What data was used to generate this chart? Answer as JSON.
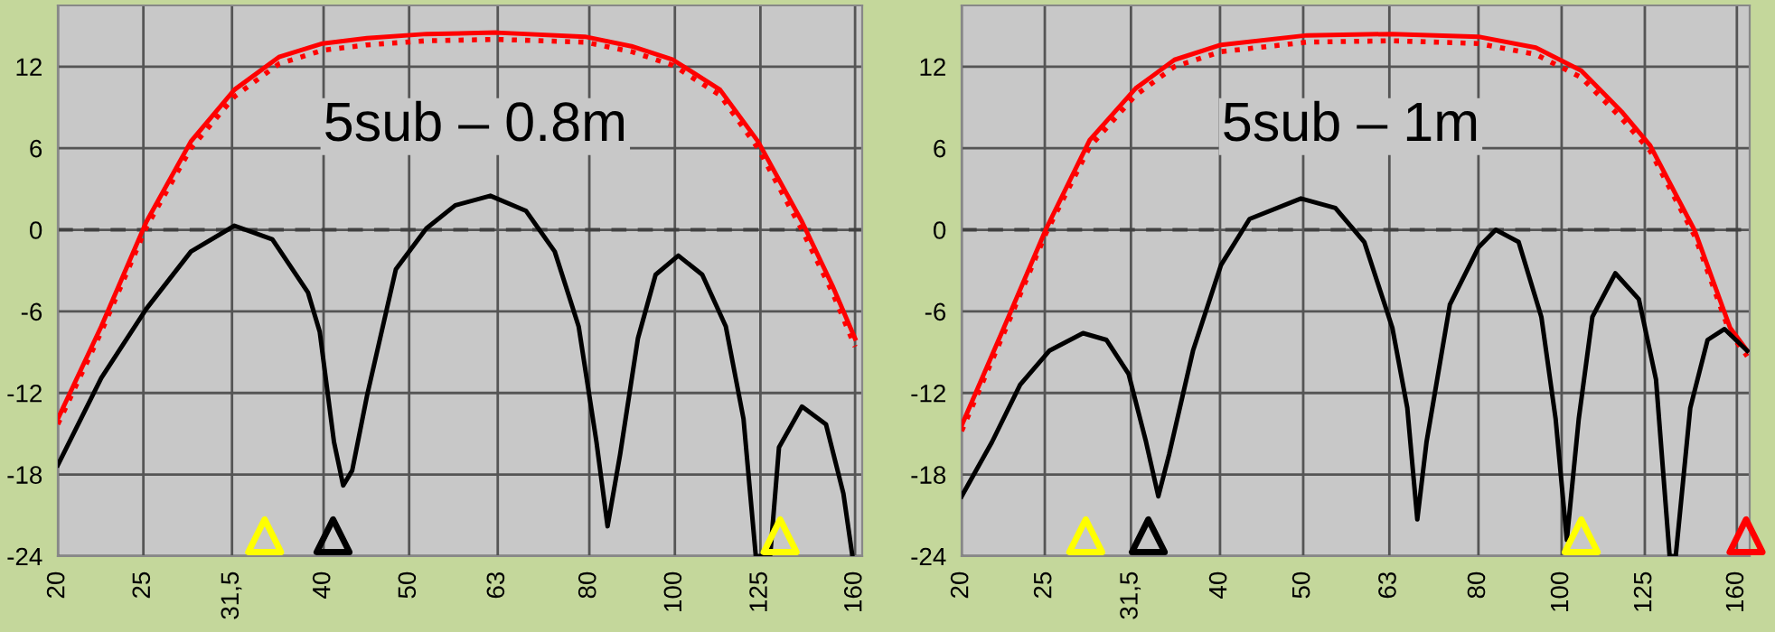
{
  "chart_data": [
    {
      "type": "line",
      "title": "5sub – 0.8m",
      "xlim": [
        20,
        163
      ],
      "ylim": [
        -24,
        16.5
      ],
      "log": "x",
      "xticks": [
        20,
        25,
        {
          "value": 31.5,
          "label": "31,5"
        },
        40,
        50,
        63,
        80,
        100,
        125,
        160
      ],
      "yticks": [
        -24,
        -18,
        -12,
        -6,
        0,
        6,
        12
      ],
      "grid": true,
      "ref_lines": [
        {
          "axis": "y",
          "value": 0,
          "color": "#404040",
          "line_style": "dashed"
        }
      ],
      "series": [
        {
          "color": "#ff0000",
          "line_style": "solid",
          "x": [
            20,
            22.4,
            25.2,
            28.3,
            31.7,
            35.6,
            39.9,
            44.8,
            52.3,
            62.8,
            79.1,
            89.3,
            99.5,
            112.5,
            124.2,
            139.3,
            150.8,
            160
          ],
          "values": [
            -13.9,
            -7.1,
            0.6,
            6.5,
            10.3,
            12.7,
            13.7,
            14.1,
            14.4,
            14.5,
            14.2,
            13.5,
            12.5,
            10.3,
            6.5,
            0.6,
            -4.1,
            -8
          ]
        },
        {
          "color": "#ff0000",
          "line_style": "dotted",
          "x": [
            20,
            22.4,
            25.2,
            28.3,
            31.7,
            35.6,
            39.9,
            44.8,
            52.3,
            62.8,
            79.1,
            89.3,
            99.5,
            112.5,
            124.2,
            139.3,
            150.8,
            160
          ],
          "values": [
            -14.3,
            -7.5,
            0.2,
            6,
            9.8,
            12.2,
            13.2,
            13.6,
            13.9,
            14,
            13.8,
            13.1,
            12.1,
            9.9,
            6,
            0,
            -4.6,
            -8.6
          ]
        },
        {
          "color": "#000000",
          "line_style": "solid",
          "x": [
            20,
            22.4,
            25.2,
            28.3,
            31.7,
            35,
            38.4,
            39.6,
            41.1,
            42.1,
            43.1,
            44.8,
            48.3,
            52.3,
            56.4,
            61.8,
            67.8,
            73.1,
            77.8,
            81.5,
            83.9,
            86.7,
            90.8,
            95.1,
            100.9,
            107.4,
            114.2,
            119.6,
            123.5,
            128.2,
            131.2,
            139.3,
            148.3,
            155.2,
            158.9
          ],
          "values": [
            -17.3,
            -10.9,
            -5.8,
            -1.6,
            0.3,
            -0.7,
            -4.6,
            -7.5,
            -15.6,
            -18.8,
            -17.7,
            -12.2,
            -2.9,
            0.1,
            1.8,
            2.5,
            1.4,
            -1.6,
            -7.1,
            -15.6,
            -21.8,
            -16.5,
            -8,
            -3.3,
            -1.9,
            -3.3,
            -7.1,
            -13.9,
            -24,
            -24,
            -16,
            -13,
            -14.3,
            -19.4,
            -24
          ]
        },
        {
          "type": "scatter",
          "marker": "triangle",
          "color": "#ffff00",
          "x": [
            34.3,
            131.6
          ],
          "values": [
            -22.5,
            -22.5
          ]
        },
        {
          "type": "scatter",
          "marker": "triangle",
          "color": "#000000",
          "x": [
            41
          ],
          "values": [
            -22.5
          ]
        }
      ]
    },
    {
      "type": "line",
      "title": "5sub – 1m",
      "xlim": [
        20,
        165.6
      ],
      "ylim": [
        -24,
        16.5
      ],
      "log": "x",
      "xticks": [
        20,
        25,
        {
          "value": 31.5,
          "label": "31,5"
        },
        40,
        50,
        63,
        80,
        100,
        125,
        160
      ],
      "yticks": [
        -24,
        -18,
        -12,
        -6,
        0,
        6,
        12
      ],
      "grid": true,
      "ref_lines": [
        {
          "axis": "y",
          "value": 0,
          "color": "#404040",
          "line_style": "dashed"
        }
      ],
      "series": [
        {
          "color": "#ff0000",
          "line_style": "solid",
          "x": [
            20,
            22.4,
            25.1,
            28.2,
            31.9,
            35.4,
            40.1,
            50.5,
            63.5,
            80,
            93.3,
            105.4,
            117.4,
            126.8,
            143,
            157.1,
            164.5
          ],
          "values": [
            -14.4,
            -7.2,
            0.1,
            6.6,
            10.4,
            12.5,
            13.6,
            14.3,
            14.4,
            14.2,
            13.4,
            11.7,
            8.7,
            6.2,
            -0.1,
            -7.2,
            -8.9
          ]
        },
        {
          "color": "#ff0000",
          "line_style": "dotted",
          "x": [
            20,
            22.4,
            25.1,
            28.2,
            31.9,
            35.4,
            40.1,
            50.5,
            63.5,
            80,
            93.3,
            105.4,
            117.4,
            126.8,
            143,
            157.1,
            164.5
          ],
          "values": [
            -14.8,
            -7.6,
            -0.2,
            6.1,
            9.9,
            12,
            13.1,
            13.8,
            13.9,
            13.7,
            12.9,
            11.2,
            8.2,
            5.8,
            -0.5,
            -7.6,
            -9.3
          ]
        },
        {
          "color": "#000000",
          "line_style": "solid",
          "x": [
            20,
            21.7,
            23.4,
            25.3,
            27.7,
            29.5,
            31.3,
            32.8,
            33.9,
            34.9,
            37.2,
            40.1,
            43.3,
            49.7,
            54.5,
            58.9,
            63.5,
            66.1,
            67.9,
            69.6,
            74.1,
            80,
            83.8,
            89.1,
            94.7,
            98.4,
            101.4,
            104.7,
            108.6,
            115.5,
            123,
            128.8,
            133.6,
            135.8,
            141.2,
            147.9,
            154.8,
            164.5
          ],
          "values": [
            -19.6,
            -15.6,
            -11.4,
            -8.9,
            -7.6,
            -8.1,
            -10.6,
            -15.6,
            -19.6,
            -16.5,
            -8.9,
            -2.6,
            0.8,
            2.3,
            1.6,
            -0.9,
            -7.2,
            -13.1,
            -21.3,
            -15.6,
            -5.5,
            -1.3,
            0,
            -0.9,
            -6.4,
            -13.9,
            -22.8,
            -13.9,
            -6.4,
            -3.2,
            -5.1,
            -11,
            -24,
            -24,
            -13.1,
            -8.1,
            -7.3,
            -8.9
          ]
        },
        {
          "type": "scatter",
          "marker": "triangle",
          "color": "#ffff00",
          "x": [
            27.9,
            105.4
          ],
          "values": [
            -22.5,
            -22.5
          ]
        },
        {
          "type": "scatter",
          "marker": "triangle",
          "color": "#000000",
          "x": [
            33
          ],
          "values": [
            -22.5
          ]
        },
        {
          "type": "scatter",
          "marker": "triangle",
          "color": "#ff0000",
          "x": [
            164
          ],
          "values": [
            -22.5
          ]
        }
      ]
    }
  ]
}
